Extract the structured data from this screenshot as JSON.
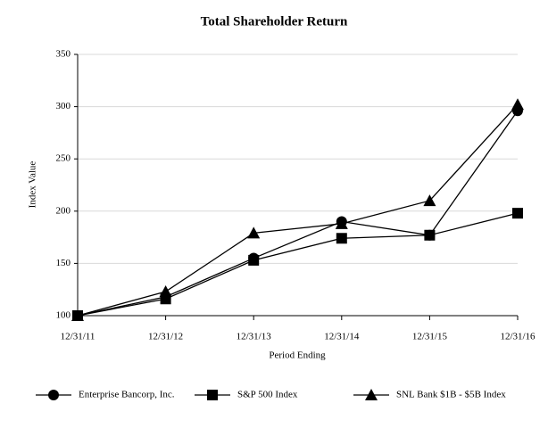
{
  "chart_data": {
    "type": "line",
    "title": "Total Shareholder Return",
    "xlabel": "Period Ending",
    "ylabel": "Index Value",
    "categories": [
      "12/31/11",
      "12/31/12",
      "12/31/13",
      "12/31/14",
      "12/31/15",
      "12/31/16"
    ],
    "series": [
      {
        "name": "Enterprise Bancorp, Inc.",
        "color": "#000000",
        "marker": "circle",
        "values": [
          100,
          118,
          155,
          190,
          177,
          296
        ]
      },
      {
        "name": "S&P 500 Index",
        "color": "#000000",
        "marker": "square",
        "values": [
          100,
          116,
          153,
          174,
          177,
          198
        ]
      },
      {
        "name": "SNL Bank $1B - $5B Index",
        "color": "#000000",
        "marker": "triangle",
        "values": [
          100,
          123,
          179,
          188,
          210,
          302
        ]
      }
    ],
    "ylim": [
      100,
      350
    ],
    "yticks": [
      100,
      150,
      200,
      250,
      300,
      350
    ],
    "grid": true,
    "legend": "bottom"
  }
}
